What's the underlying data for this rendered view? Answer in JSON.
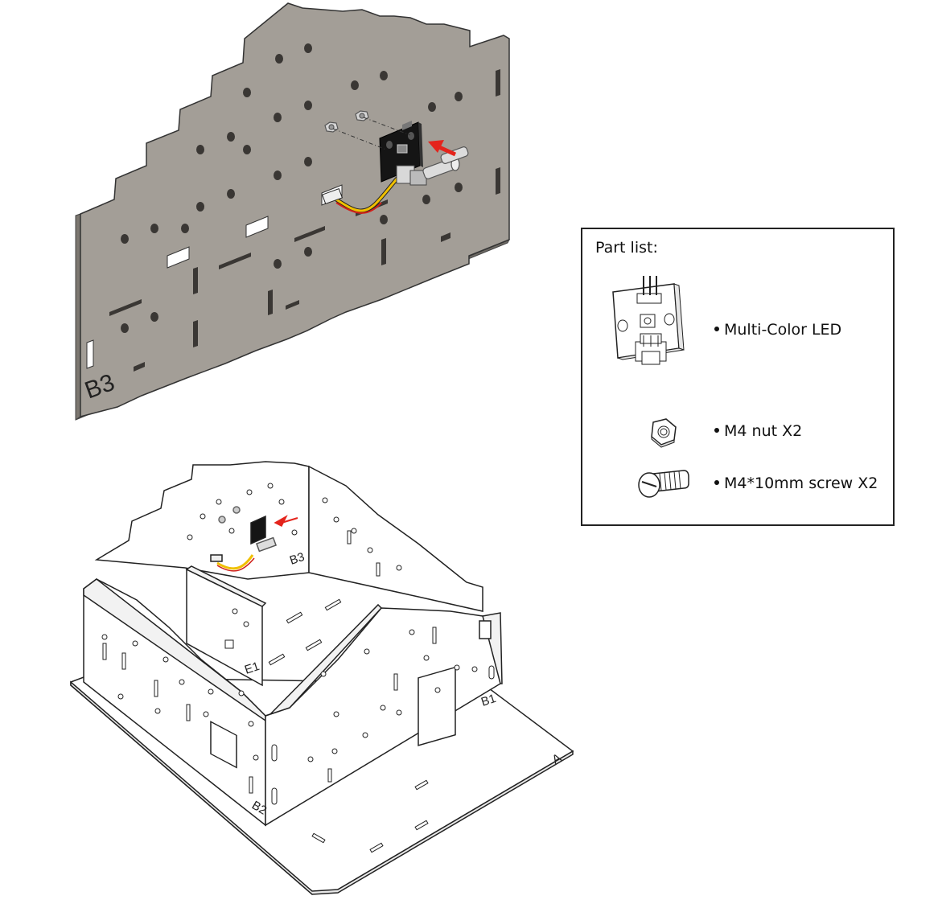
{
  "top_panel": {
    "label": "B3"
  },
  "assembly": {
    "panel_labels": {
      "b3": "B3",
      "e1": "E1",
      "b1": "B1",
      "b2": "B2",
      "a": "A"
    }
  },
  "part_list": {
    "title": "Part list:",
    "items": [
      {
        "label": "Multi-Color LED",
        "icon": "led-module-icon"
      },
      {
        "label": "M4 nut X2",
        "icon": "hex-nut-icon"
      },
      {
        "label": "M4*10mm screw X2",
        "icon": "screw-icon"
      }
    ]
  },
  "colors": {
    "panel_wood": "#a39e97",
    "module_black": "#151515",
    "arrow_red": "#e4241c",
    "wire_yellow": "#f0c000",
    "wire_red": "#d0201a"
  }
}
